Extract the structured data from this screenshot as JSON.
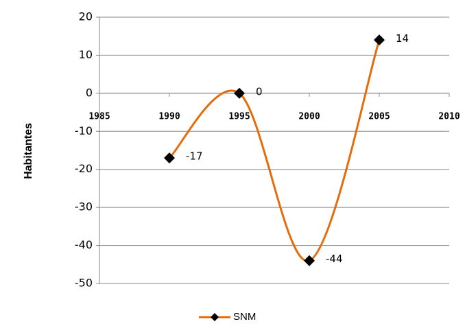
{
  "chart_data": {
    "type": "scatter",
    "x": [
      1990,
      1995,
      2000,
      2005
    ],
    "series": [
      {
        "name": "SNM",
        "color": "#e46c0a",
        "values": [
          -17,
          0,
          -44,
          14
        ]
      }
    ],
    "xlim": [
      1985,
      2010
    ],
    "xticks": [
      1985,
      1990,
      1995,
      2000,
      2005,
      2010
    ],
    "ylim": [
      -50,
      20
    ],
    "yticks": [
      20,
      10,
      0,
      -10,
      -20,
      -30,
      -40,
      -50
    ],
    "ylabel": "Habitantes",
    "grid": true,
    "smooth": true,
    "legend": "bottom",
    "marker": "diamond",
    "marker_color": "#000000"
  }
}
